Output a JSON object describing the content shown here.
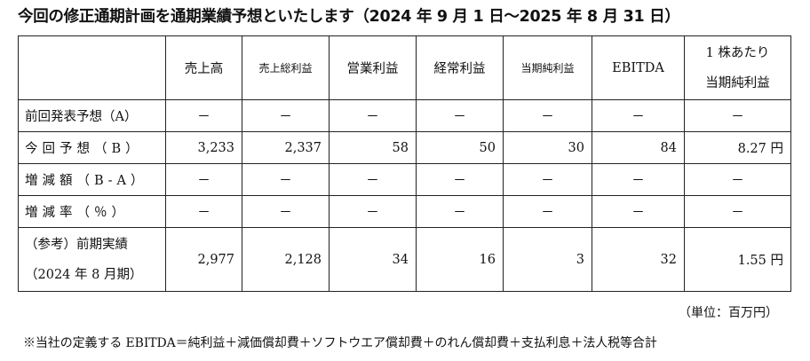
{
  "title": "今回の修正通期計画を通期業績予想といたします（2024 年 9 月 1 日～2025 年 8 月 31 日）",
  "table": {
    "columns": [
      {
        "label": "売上高",
        "small": false
      },
      {
        "label": "売上総利益",
        "small": true
      },
      {
        "label": "営業利益",
        "small": false
      },
      {
        "label": "経常利益",
        "small": false
      },
      {
        "label": "当期純利益",
        "small": true
      },
      {
        "label": "EBITDA",
        "small": false
      }
    ],
    "last_column": {
      "line1": "1 株あたり",
      "line2": "当期純利益"
    },
    "rows": [
      {
        "label": "前回発表予想（A）",
        "values": [
          "－",
          "－",
          "－",
          "－",
          "－",
          "－",
          "－"
        ]
      },
      {
        "label": "今回予想（B）",
        "values": [
          "3,233",
          "2,337",
          "58",
          "50",
          "30",
          "84",
          "8.27 円"
        ]
      },
      {
        "label": "増減額（B‐A）",
        "values": [
          "－",
          "－",
          "－",
          "－",
          "－",
          "－",
          "－"
        ]
      },
      {
        "label": "増減率（％）",
        "values": [
          "－",
          "－",
          "－",
          "－",
          "－",
          "－",
          "－"
        ]
      }
    ],
    "reference_row": {
      "label_line1": "（参考）前期実績",
      "label_line2": "（2024 年 8 月期）",
      "values": [
        "2,977",
        "2,128",
        "34",
        "16",
        "3",
        "32",
        "1.55 円"
      ]
    }
  },
  "unit_note": "（単位：百万円）",
  "footnote": "※当社の定義する EBITDA＝純利益＋減価償却費＋ソフトウエア償却費＋のれん償却費＋支払利息＋法人税等合計"
}
